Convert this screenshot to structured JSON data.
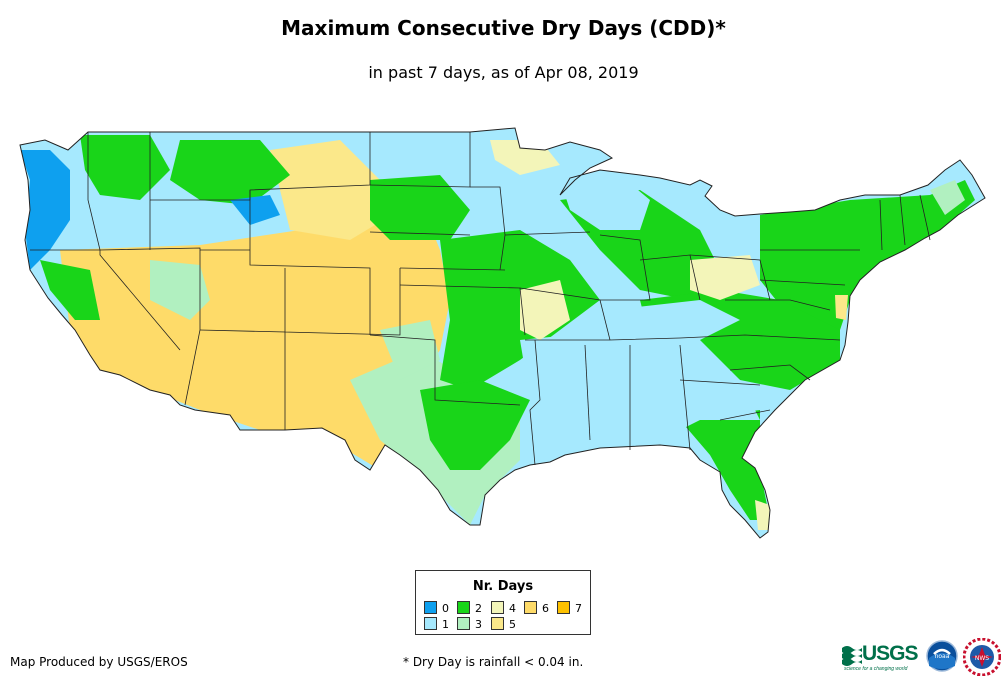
{
  "header": {
    "title": "Maximum Consecutive Dry Days (CDD)*",
    "subtitle": "in past 7 days, as of Apr 08, 2019"
  },
  "legend": {
    "title": "Nr. Days",
    "items": [
      {
        "label": "0",
        "color": "#0ea0ef"
      },
      {
        "label": "1",
        "color": "#a6e9fe"
      },
      {
        "label": "2",
        "color": "#19d519"
      },
      {
        "label": "3",
        "color": "#b1f0c0"
      },
      {
        "label": "4",
        "color": "#f3f5b9"
      },
      {
        "label": "5",
        "color": "#fbe88a"
      },
      {
        "label": "6",
        "color": "#fedb69"
      },
      {
        "label": "7",
        "color": "#fdc100"
      }
    ]
  },
  "footer": {
    "credit": "Map Produced by USGS/EROS",
    "note": "* Dry Day is rainfall < 0.04 in."
  },
  "logos": {
    "usgs": "USGS",
    "usgs_tagline": "science for a changing world",
    "noaa": "noaa",
    "nws": "NWS"
  }
}
